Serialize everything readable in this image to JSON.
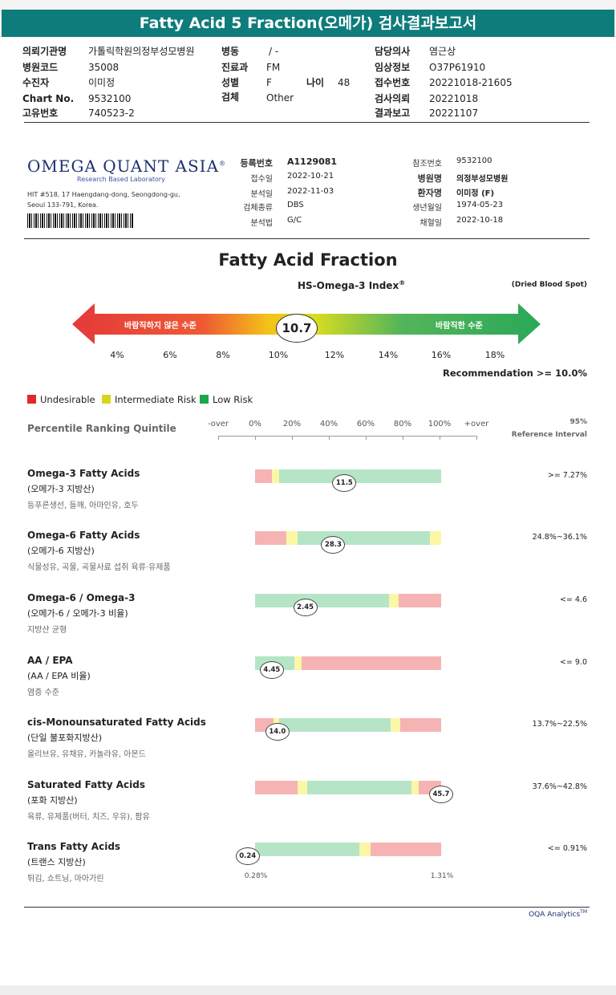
{
  "title": "Fatty Acid 5 Fraction(오메가) 검사결과보고서",
  "patient_info": {
    "col1": [
      {
        "label": "의뢰기관명",
        "value": "가톨릭학원의정부성모병원"
      },
      {
        "label": "병원코드",
        "value": "35008"
      },
      {
        "label": "수진자",
        "value": "이미정"
      },
      {
        "label": "Chart No.",
        "value": "9532100"
      },
      {
        "label": "고유번호",
        "value": "740523-2"
      }
    ],
    "col2": [
      {
        "label": "병동",
        "value": "/ -"
      },
      {
        "label": "진료과",
        "value": "FM"
      },
      {
        "label": "성별",
        "value": "F"
      },
      {
        "label": "검체",
        "value": "Other"
      }
    ],
    "age_label": "나이",
    "age_value": "48",
    "col3": [
      {
        "label": "담당의사",
        "value": "염근상"
      },
      {
        "label": "임상정보",
        "value": "O37P61910"
      },
      {
        "label": "접수번호",
        "value": "20221018-21605"
      },
      {
        "label": "검사의뢰",
        "value": "20221018"
      },
      {
        "label": "결과보고",
        "value": "20221107"
      }
    ]
  },
  "lab": {
    "name": "OMEGA QUANT ASIA",
    "registered": "®",
    "subtitle": "Research Based Laboratory",
    "address": "HIT #518, 17 Haengdang-dong, Seongdong-gu, Seoul 133-791, Korea."
  },
  "registration": {
    "left": [
      {
        "label": "등록번호",
        "value": "A1129081",
        "bold": true
      },
      {
        "label": "접수일",
        "value": "2022-10-21"
      },
      {
        "label": "분석일",
        "value": "2022-11-03"
      },
      {
        "label": "검체종류",
        "value": "DBS"
      },
      {
        "label": "분석법",
        "value": "G/C"
      }
    ],
    "right": [
      {
        "label": "참조번호",
        "value": "9532100"
      },
      {
        "label": "병원명",
        "value": "의정부성모병원",
        "bold": true
      },
      {
        "label": "환자명",
        "value": "이미정 (F)",
        "bold": true
      },
      {
        "label": "생년월일",
        "value": "1974-05-23"
      },
      {
        "label": "채혈일",
        "value": "2022-10-18"
      }
    ]
  },
  "fraction": {
    "title": "Fatty Acid Fraction",
    "index_title": "HS-Omega-3 Index",
    "index_sup": "®",
    "sample_type": "(Dried Blood Spot)",
    "left_arrow_text": "바람직하지 않은 수준",
    "right_arrow_text": "바람직한 수준",
    "index_value": "10.7",
    "scale": [
      "4%",
      "6%",
      "8%",
      "10%",
      "12%",
      "14%",
      "16%",
      "18%"
    ],
    "recommendation": "Recommendation  >= 10.0%"
  },
  "legend": [
    {
      "label": "Undesirable",
      "color": "#e02a2a"
    },
    {
      "label": "Intermediate Risk",
      "color": "#d6d61a"
    },
    {
      "label": "Low Risk",
      "color": "#1aa84a"
    }
  ],
  "percentile": {
    "label": "Percentile Ranking Quintile",
    "ticks": [
      "-over",
      "0%",
      "20%",
      "40%",
      "60%",
      "80%",
      "100%",
      "+over"
    ],
    "ref_head_1": "95%",
    "ref_head_2": "Reference Interval"
  },
  "colors": {
    "red": "#f6b3b3",
    "yellow": "#fbf7a6",
    "green": "#b5e5c6"
  },
  "rows": [
    {
      "title": "Omega-3 Fatty Acids",
      "sub": "(오메가-3 지방산)",
      "examples": "등푸른생선, 들깨, 아마인유, 호두",
      "segments": [
        {
          "c": "red",
          "from": 0,
          "to": 0.09
        },
        {
          "c": "yellow",
          "from": 0.09,
          "to": 0.13
        },
        {
          "c": "green",
          "from": 0.13,
          "to": 1
        }
      ],
      "value": "11.5",
      "pos": 0.48,
      "ref": ">= 7.27%"
    },
    {
      "title": "Omega-6 Fatty Acids",
      "sub": "(오메가-6 지방산)",
      "examples": "식물성유, 곡물, 곡물사료 섭취 육류·유제품",
      "segments": [
        {
          "c": "red",
          "from": 0,
          "to": 0.17
        },
        {
          "c": "yellow",
          "from": 0.17,
          "to": 0.23
        },
        {
          "c": "green",
          "from": 0.23,
          "to": 0.94
        },
        {
          "c": "yellow",
          "from": 0.94,
          "to": 1
        }
      ],
      "value": "28.3",
      "pos": 0.42,
      "ref": "24.8%~36.1%"
    },
    {
      "title": "Omega-6 / Omega-3",
      "sub": "(오메가-6 / 오메가-3 비율)",
      "examples": "지방산 균형",
      "segments": [
        {
          "c": "green",
          "from": 0,
          "to": 0.72
        },
        {
          "c": "yellow",
          "from": 0.72,
          "to": 0.77
        },
        {
          "c": "red",
          "from": 0.77,
          "to": 1
        }
      ],
      "value": "2.45",
      "pos": 0.27,
      "ref": "<= 4.6"
    },
    {
      "title": "AA / EPA",
      "sub": "(AA / EPA 비율)",
      "examples": "염증 수준",
      "segments": [
        {
          "c": "green",
          "from": 0,
          "to": 0.21
        },
        {
          "c": "yellow",
          "from": 0.21,
          "to": 0.25
        },
        {
          "c": "red",
          "from": 0.25,
          "to": 1
        }
      ],
      "value": "4.45",
      "pos": 0.09,
      "ref": "<= 9.0"
    },
    {
      "title": "cis-Monounsaturated Fatty Acids",
      "sub": "(단일 불포화지방산)",
      "examples": "올리브유, 유채유, 카놀라유, 아몬드",
      "segments": [
        {
          "c": "red",
          "from": 0,
          "to": 0.1
        },
        {
          "c": "yellow",
          "from": 0.1,
          "to": 0.13
        },
        {
          "c": "green",
          "from": 0.13,
          "to": 0.73
        },
        {
          "c": "yellow",
          "from": 0.73,
          "to": 0.78
        },
        {
          "c": "red",
          "from": 0.78,
          "to": 1
        }
      ],
      "value": "14.0",
      "pos": 0.12,
      "ref": "13.7%~22.5%"
    },
    {
      "title": "Saturated Fatty Acids",
      "sub": "(포화 지방산)",
      "examples": "육류, 유제품(버터, 치즈, 우유), 팜유",
      "segments": [
        {
          "c": "red",
          "from": 0,
          "to": 0.23
        },
        {
          "c": "yellow",
          "from": 0.23,
          "to": 0.28
        },
        {
          "c": "green",
          "from": 0.28,
          "to": 0.84
        },
        {
          "c": "yellow",
          "from": 0.84,
          "to": 0.88
        },
        {
          "c": "red",
          "from": 0.88,
          "to": 1
        }
      ],
      "value": "45.7",
      "pos": 1.0,
      "ref": "37.6%~42.8%"
    },
    {
      "title": "Trans Fatty Acids",
      "sub": "(트랜스 지방산)",
      "examples": "튀김, 쇼트닝, 마아가린",
      "segments": [
        {
          "c": "green",
          "from": 0,
          "to": 0.56
        },
        {
          "c": "yellow",
          "from": 0.56,
          "to": 0.62
        },
        {
          "c": "red",
          "from": 0.62,
          "to": 1
        }
      ],
      "value": "0.24",
      "pos": -0.04,
      "ref": "<= 0.91%",
      "end_left": "0.28%",
      "end_right": "1.31%"
    }
  ],
  "footer": {
    "analytics": "OQA Analytics",
    "tm": "TM"
  }
}
